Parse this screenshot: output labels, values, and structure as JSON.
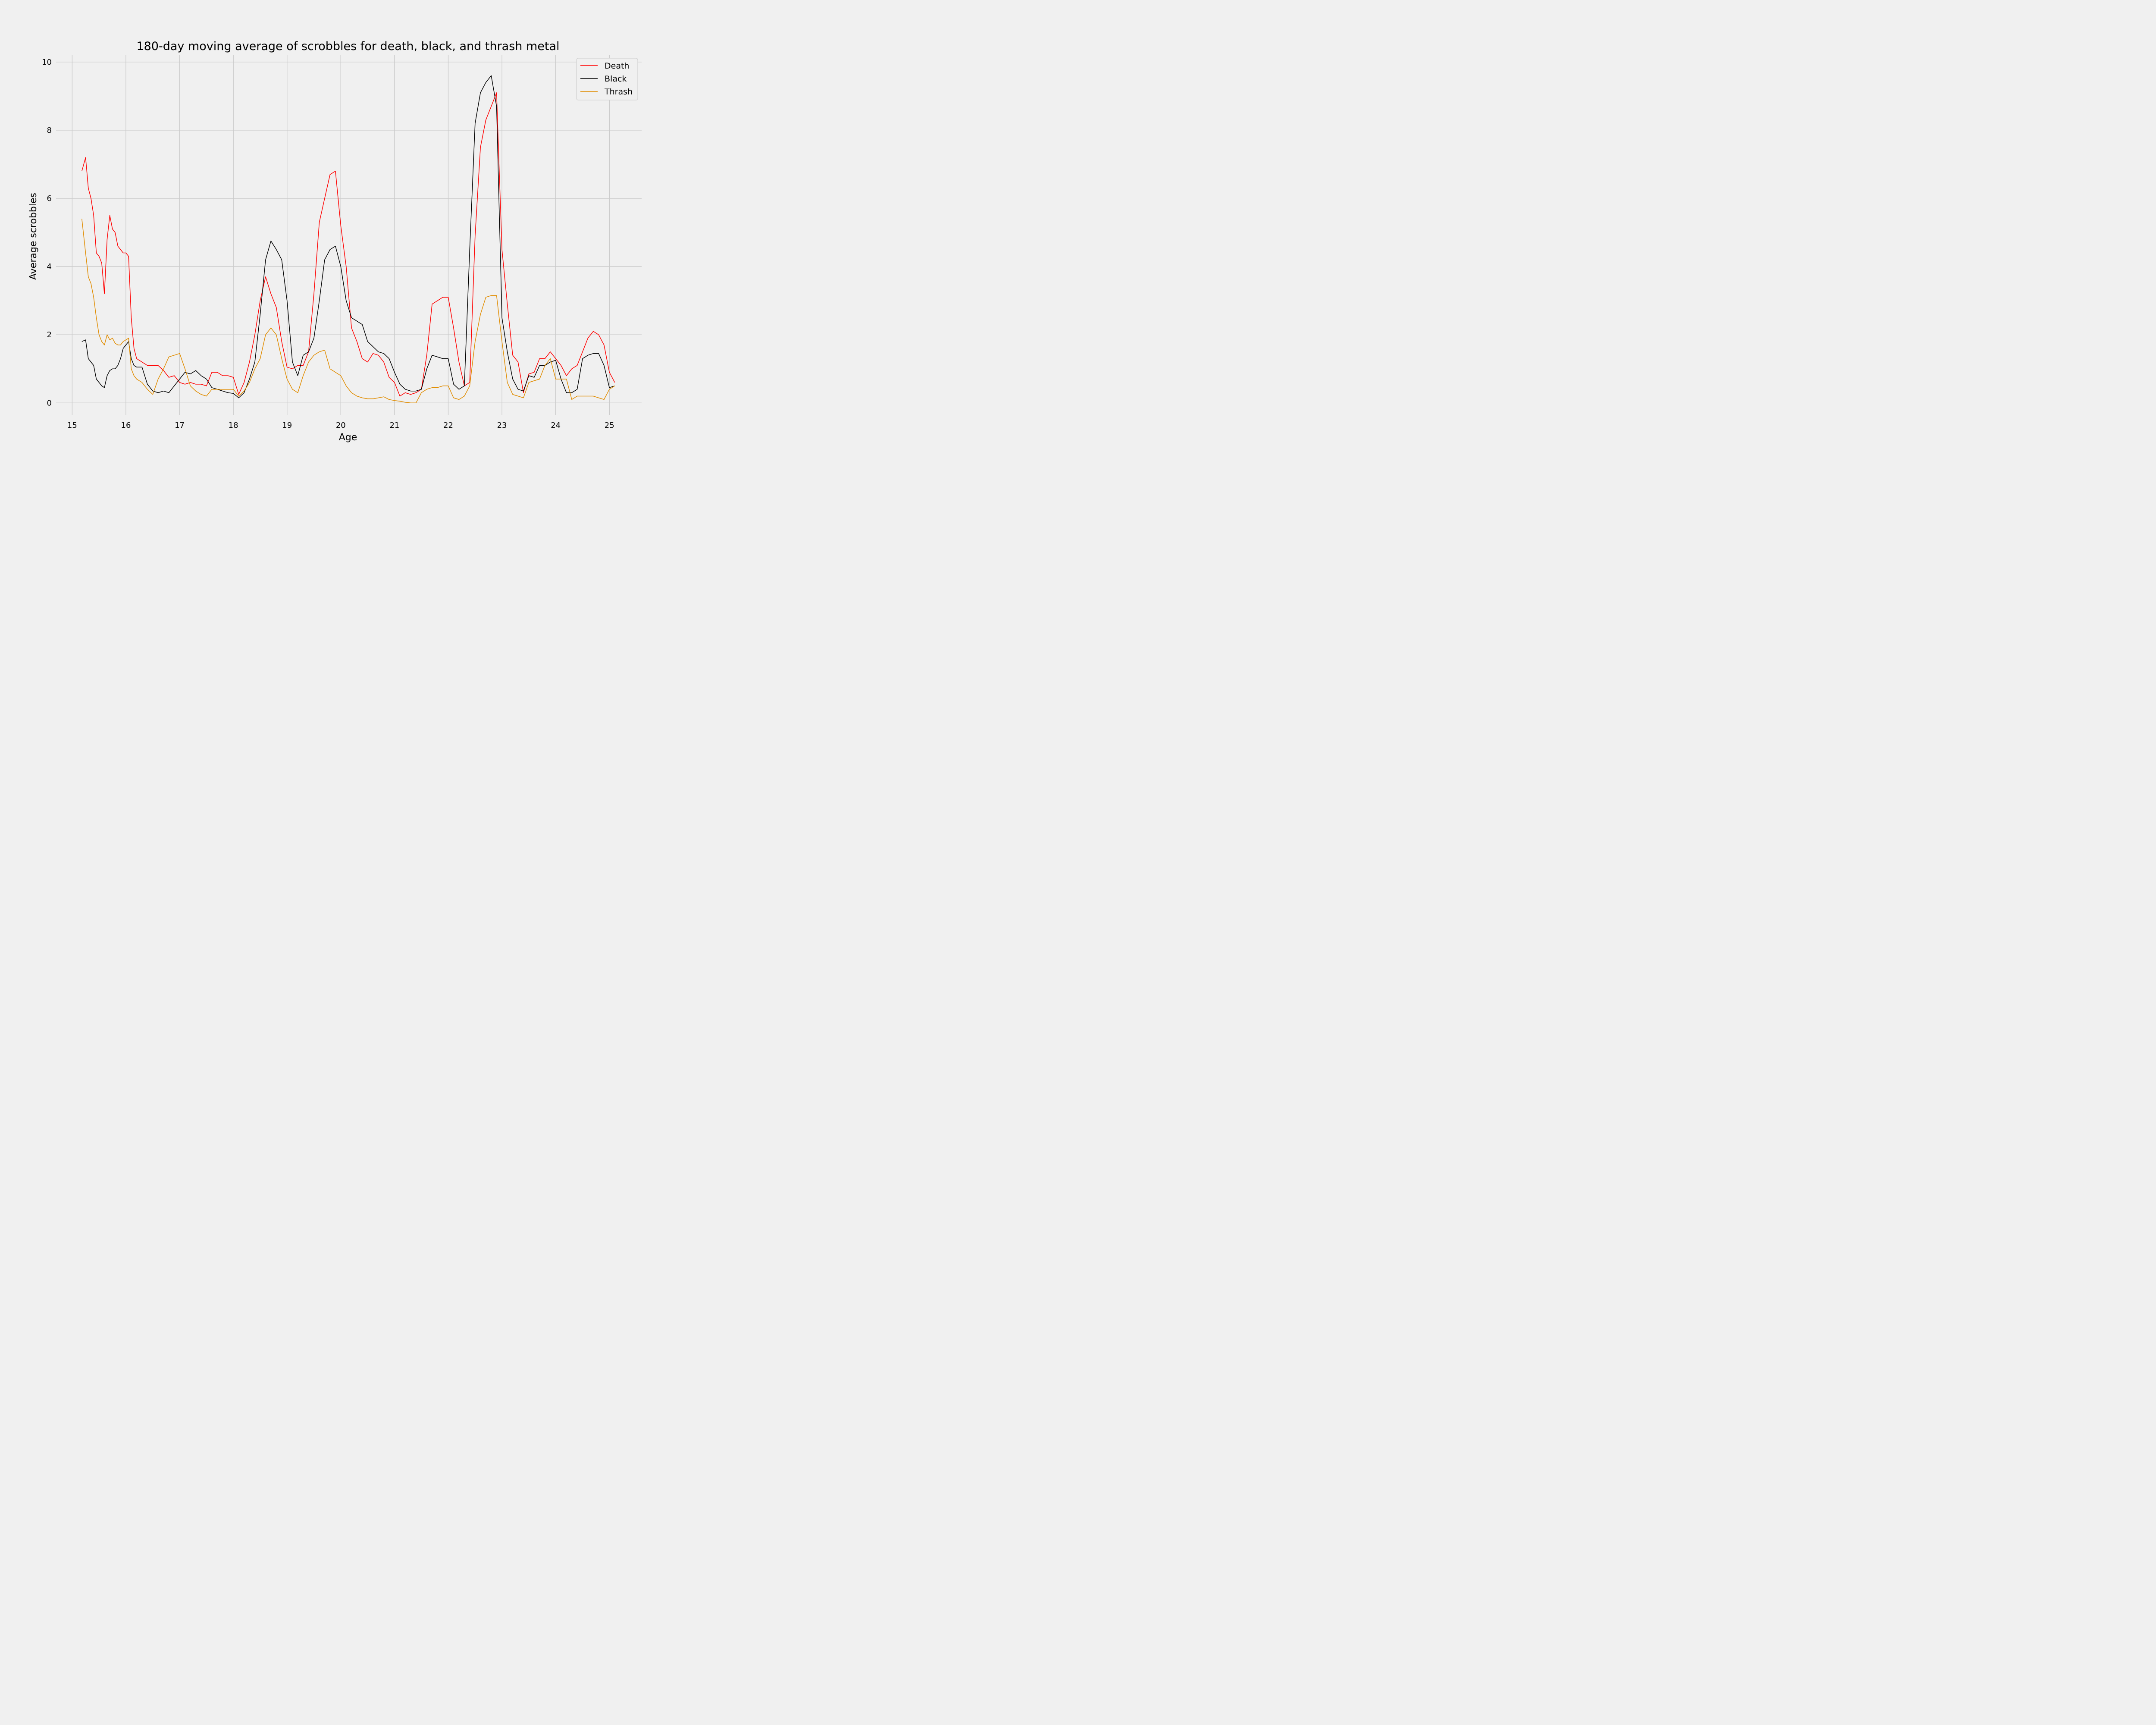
{
  "chart_data": {
    "type": "line",
    "title": "180-day moving average of scrobbles for death, black, and thrash metal",
    "xlabel": "Age",
    "ylabel": "Average scrobbles",
    "xlim": [
      14.7,
      25.6
    ],
    "ylim": [
      -0.35,
      10.2
    ],
    "xticks": [
      15,
      16,
      17,
      18,
      19,
      20,
      21,
      22,
      23,
      24,
      25
    ],
    "yticks": [
      0,
      2,
      4,
      6,
      8,
      10
    ],
    "grid": true,
    "legend": "top-right",
    "x": [
      15.18,
      15.25,
      15.3,
      15.35,
      15.4,
      15.45,
      15.5,
      15.55,
      15.6,
      15.65,
      15.7,
      15.75,
      15.8,
      15.85,
      15.9,
      15.95,
      16.0,
      16.05,
      16.1,
      16.15,
      16.2,
      16.3,
      16.4,
      16.5,
      16.6,
      16.7,
      16.8,
      16.9,
      17.0,
      17.1,
      17.2,
      17.3,
      17.4,
      17.5,
      17.6,
      17.7,
      17.8,
      17.9,
      18.0,
      18.1,
      18.2,
      18.3,
      18.4,
      18.5,
      18.6,
      18.7,
      18.8,
      18.9,
      19.0,
      19.1,
      19.2,
      19.3,
      19.4,
      19.5,
      19.6,
      19.7,
      19.8,
      19.9,
      20.0,
      20.1,
      20.2,
      20.3,
      20.4,
      20.5,
      20.6,
      20.7,
      20.8,
      20.9,
      21.0,
      21.1,
      21.2,
      21.3,
      21.4,
      21.5,
      21.6,
      21.7,
      21.8,
      21.9,
      22.0,
      22.1,
      22.2,
      22.3,
      22.4,
      22.5,
      22.6,
      22.7,
      22.8,
      22.9,
      23.0,
      23.1,
      23.2,
      23.3,
      23.4,
      23.5,
      23.6,
      23.7,
      23.8,
      23.9,
      24.0,
      24.1,
      24.2,
      24.3,
      24.4,
      24.5,
      24.6,
      24.7,
      24.8,
      24.9,
      25.0,
      25.1
    ],
    "series": [
      {
        "name": "Death",
        "color": "#ff0000",
        "values": [
          6.8,
          7.2,
          6.3,
          6.0,
          5.5,
          4.4,
          4.3,
          4.1,
          3.2,
          4.8,
          5.5,
          5.1,
          5.0,
          4.6,
          4.5,
          4.4,
          4.4,
          4.3,
          2.5,
          1.6,
          1.3,
          1.2,
          1.1,
          1.1,
          1.1,
          0.95,
          0.75,
          0.8,
          0.6,
          0.55,
          0.6,
          0.55,
          0.55,
          0.5,
          0.9,
          0.9,
          0.8,
          0.8,
          0.75,
          0.25,
          0.6,
          1.2,
          2.0,
          3.0,
          3.7,
          3.2,
          2.8,
          1.8,
          1.05,
          1.0,
          1.1,
          1.1,
          1.5,
          3.2,
          5.3,
          6.0,
          6.7,
          6.8,
          5.2,
          4.0,
          2.2,
          1.8,
          1.3,
          1.2,
          1.45,
          1.4,
          1.2,
          0.75,
          0.6,
          0.2,
          0.3,
          0.25,
          0.3,
          0.4,
          1.4,
          2.9,
          3.0,
          3.1,
          3.1,
          2.2,
          1.2,
          0.5,
          0.6,
          4.9,
          7.5,
          8.3,
          8.7,
          9.1,
          4.5,
          2.9,
          1.4,
          1.2,
          0.3,
          0.85,
          0.9,
          1.3,
          1.3,
          1.5,
          1.3,
          1.1,
          0.8,
          1.0,
          1.1,
          1.5,
          1.9,
          2.1,
          2.0,
          1.7,
          0.9,
          0.6
        ]
      },
      {
        "name": "Black",
        "color": "#000000",
        "values": [
          1.8,
          1.85,
          1.3,
          1.2,
          1.1,
          0.7,
          0.6,
          0.5,
          0.45,
          0.8,
          0.95,
          1.0,
          1.0,
          1.1,
          1.3,
          1.6,
          1.7,
          1.8,
          1.3,
          1.1,
          1.05,
          1.05,
          0.55,
          0.35,
          0.3,
          0.35,
          0.3,
          0.5,
          0.7,
          0.9,
          0.85,
          0.95,
          0.8,
          0.7,
          0.45,
          0.4,
          0.35,
          0.3,
          0.28,
          0.15,
          0.3,
          0.7,
          1.2,
          2.6,
          4.2,
          4.75,
          4.5,
          4.2,
          3.0,
          1.2,
          0.8,
          1.4,
          1.5,
          1.9,
          3.0,
          4.2,
          4.5,
          4.6,
          4.0,
          3.0,
          2.5,
          2.4,
          2.3,
          1.8,
          1.65,
          1.5,
          1.45,
          1.3,
          0.9,
          0.55,
          0.4,
          0.35,
          0.35,
          0.4,
          1.0,
          1.4,
          1.35,
          1.3,
          1.3,
          0.55,
          0.4,
          0.5,
          4.5,
          8.2,
          9.1,
          9.4,
          9.6,
          8.7,
          2.5,
          1.5,
          0.7,
          0.4,
          0.35,
          0.8,
          0.75,
          1.1,
          1.1,
          1.2,
          1.25,
          0.7,
          0.3,
          0.3,
          0.4,
          1.3,
          1.4,
          1.45,
          1.45,
          1.1,
          0.45,
          0.5
        ]
      },
      {
        "name": "Thrash",
        "color": "#e08c00",
        "values": [
          5.4,
          4.4,
          3.7,
          3.5,
          3.1,
          2.5,
          2.0,
          1.8,
          1.7,
          2.0,
          1.85,
          1.9,
          1.75,
          1.7,
          1.7,
          1.8,
          1.85,
          1.9,
          1.0,
          0.8,
          0.7,
          0.6,
          0.4,
          0.25,
          0.7,
          1.0,
          1.35,
          1.4,
          1.45,
          1.0,
          0.5,
          0.35,
          0.25,
          0.2,
          0.4,
          0.4,
          0.4,
          0.4,
          0.4,
          0.2,
          0.35,
          0.6,
          1.0,
          1.3,
          2.0,
          2.2,
          2.0,
          1.3,
          0.7,
          0.4,
          0.3,
          0.8,
          1.2,
          1.4,
          1.5,
          1.55,
          1.0,
          0.9,
          0.8,
          0.5,
          0.3,
          0.2,
          0.15,
          0.12,
          0.12,
          0.15,
          0.18,
          0.1,
          0.07,
          0.05,
          0.02,
          0.0,
          0.0,
          0.3,
          0.4,
          0.45,
          0.45,
          0.5,
          0.5,
          0.15,
          0.1,
          0.2,
          0.5,
          1.8,
          2.6,
          3.1,
          3.15,
          3.15,
          1.8,
          0.6,
          0.25,
          0.2,
          0.15,
          0.6,
          0.65,
          0.7,
          1.1,
          1.3,
          0.7,
          0.7,
          0.7,
          0.1,
          0.2,
          0.2,
          0.2,
          0.2,
          0.15,
          0.1,
          0.4,
          0.5
        ]
      }
    ]
  }
}
